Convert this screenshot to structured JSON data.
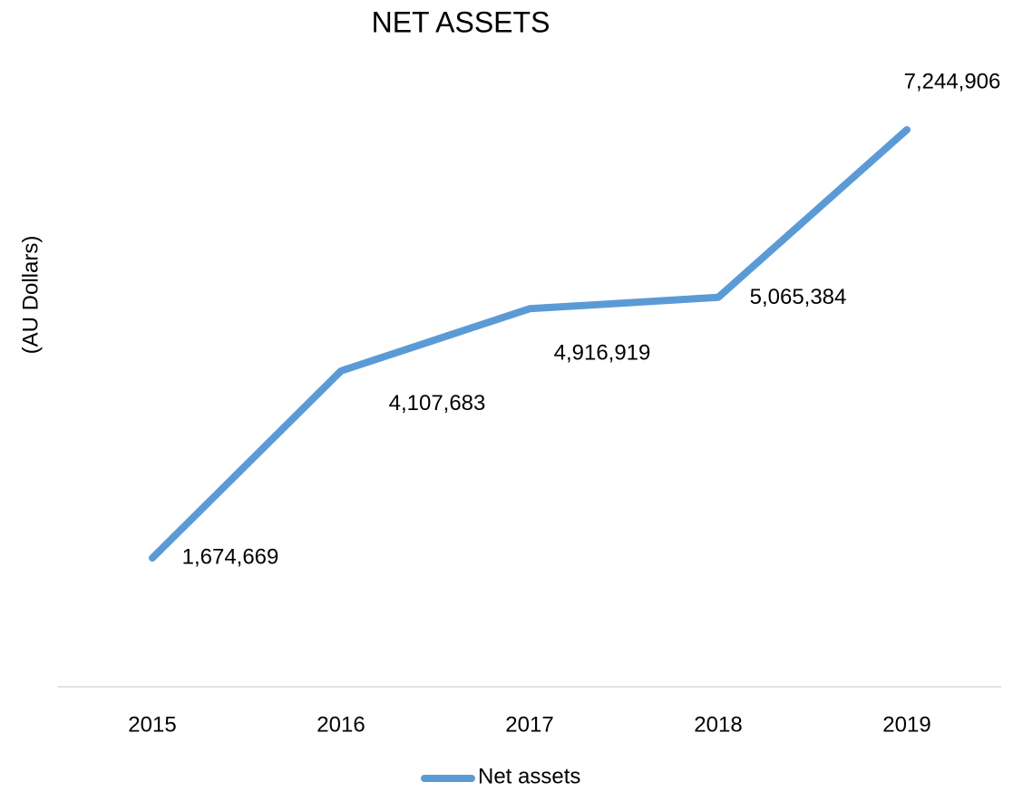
{
  "chart_data": {
    "type": "line",
    "title": "NET ASSETS",
    "y_label": "(AU Dollars)",
    "categories": [
      "2015",
      "2016",
      "2017",
      "2018",
      "2019"
    ],
    "series": [
      {
        "name": "Net assets",
        "color": "#5b9bd5",
        "values": [
          1674669,
          4107683,
          4916919,
          5065384,
          7244906
        ],
        "value_labels": [
          "1,674,669",
          "4,107,683",
          "4,916,919",
          "5,065,384",
          "7,244,906"
        ]
      }
    ],
    "ylim": [
      0,
      8000000
    ],
    "legend": "bottom"
  }
}
